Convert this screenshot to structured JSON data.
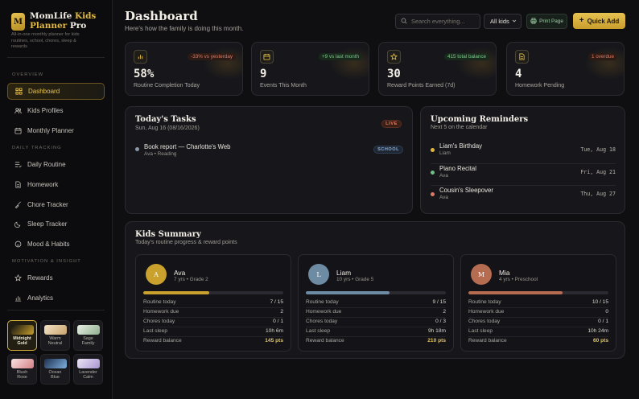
{
  "brand": {
    "logo_letter": "M",
    "name_part1": "MomLife",
    "name_part2": "Kids",
    "name_part3": "Planner",
    "name_part4": "Pro",
    "subtitle": "All-in-one monthly planner for kids routines, school, chores, sleep & rewards"
  },
  "sidebar": {
    "sections": [
      {
        "title": "Overview",
        "items": [
          {
            "label": "Dashboard",
            "icon": "grid-icon",
            "active": true
          },
          {
            "label": "Kids Profiles",
            "icon": "users-icon"
          },
          {
            "label": "Monthly Planner",
            "icon": "calendar-icon"
          }
        ]
      },
      {
        "title": "Daily Tracking",
        "items": [
          {
            "label": "Daily Routine",
            "icon": "list-check-icon"
          },
          {
            "label": "Homework",
            "icon": "document-icon"
          },
          {
            "label": "Chore Tracker",
            "icon": "broom-icon"
          },
          {
            "label": "Sleep Tracker",
            "icon": "moon-icon"
          },
          {
            "label": "Mood & Habits",
            "icon": "smile-icon"
          }
        ]
      },
      {
        "title": "Motivation & Insight",
        "items": [
          {
            "label": "Rewards",
            "icon": "star-icon"
          },
          {
            "label": "Analytics",
            "icon": "bar-chart-icon"
          }
        ]
      }
    ],
    "themes": [
      {
        "label1": "Midnight",
        "label2": "Gold",
        "active": true
      },
      {
        "label1": "Warm",
        "label2": "Neutral"
      },
      {
        "label1": "Sage",
        "label2": "Family"
      },
      {
        "label1": "Blush",
        "label2": "Rose"
      },
      {
        "label1": "Ocean",
        "label2": "Blue"
      },
      {
        "label1": "Lavender",
        "label2": "Calm"
      }
    ]
  },
  "header": {
    "title": "Dashboard",
    "subtitle": "Here's how the family is doing this month.",
    "search_placeholder": "Search everything...",
    "kid_select": "All kids",
    "print_label": "Print Page",
    "quick_add_label": "Quick Add"
  },
  "stats": [
    {
      "value": "58%",
      "label": "Routine Completion Today",
      "delta": "-33% vs yesterday",
      "icon": "bar-chart-icon"
    },
    {
      "value": "9",
      "label": "Events This Month",
      "delta": "+9 vs last month",
      "icon": "calendar-icon"
    },
    {
      "value": "30",
      "label": "Reward Points Earned (7d)",
      "delta": "415 total balance",
      "icon": "star-icon"
    },
    {
      "value": "4",
      "label": "Homework Pending",
      "delta": "1 overdue",
      "icon": "document-icon"
    }
  ],
  "tasks": {
    "title": "Today's Tasks",
    "date": "Sun, Aug 16 (08/16/2026)",
    "badge": "LIVE",
    "items": [
      {
        "title": "Book report — Charlotte's Web",
        "meta": "Ava • Reading",
        "tag": "SCHOOL"
      }
    ]
  },
  "reminders": {
    "title": "Upcoming Reminders",
    "subtitle": "Next 5 on the calendar",
    "items": [
      {
        "title": "Liam's Birthday",
        "who": "Liam",
        "date": "Tue, Aug 18",
        "color": "#e2b93b"
      },
      {
        "title": "Piano Recital",
        "who": "Ava",
        "date": "Fri, Aug 21",
        "color": "#6fbf83"
      },
      {
        "title": "Cousin's Sleepover",
        "who": "Ava",
        "date": "Thu, Aug 27",
        "color": "#e07a62"
      }
    ]
  },
  "kids_summary": {
    "title": "Kids Summary",
    "subtitle": "Today's routine progress & reward points",
    "row_labels": [
      "Routine today",
      "Homework due",
      "Chores today",
      "Last sleep",
      "Reward balance"
    ],
    "kids": [
      {
        "initial": "A",
        "name": "Ava",
        "info": "7 yrs • Grade 2",
        "color": "#c9a12c",
        "progress": 0.47,
        "routine": "7 / 15",
        "homework": "2",
        "chores": "0 / 1",
        "sleep": "10h 6m",
        "reward": "145 pts"
      },
      {
        "initial": "L",
        "name": "Liam",
        "info": "10 yrs • Grade 5",
        "color": "#6d8ba3",
        "progress": 0.6,
        "routine": "9 / 15",
        "homework": "2",
        "chores": "0 / 3",
        "sleep": "9h 18m",
        "reward": "210 pts"
      },
      {
        "initial": "M",
        "name": "Mia",
        "info": "4 yrs • Preschool",
        "color": "#b66c50",
        "progress": 0.67,
        "routine": "10 / 15",
        "homework": "0",
        "chores": "0 / 1",
        "sleep": "10h 24m",
        "reward": "60 pts"
      }
    ]
  }
}
